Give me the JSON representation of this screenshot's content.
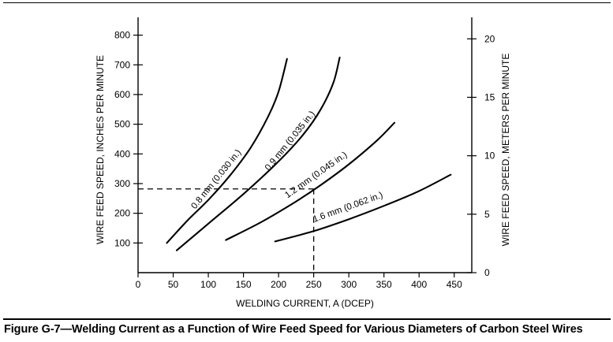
{
  "caption": "Figure G-7—Welding Current as a Function of Wire Feed Speed for Various Diameters of Carbon Steel Wires",
  "chart_data": {
    "type": "line",
    "xlabel": "WELDING CURRENT, A (DCEP)",
    "ylabel": "WIRE FEED SPEED, INCHES PER MINUTE",
    "y2label": "WIRE FEED SPEED, METERS PER MINUTE",
    "xlim": [
      0,
      475
    ],
    "ylim": [
      0,
      860
    ],
    "y2lim": [
      0,
      21.84
    ],
    "xticks": [
      0,
      50,
      100,
      150,
      200,
      250,
      300,
      350,
      400,
      450
    ],
    "yticks": [
      100,
      200,
      300,
      400,
      500,
      600,
      700,
      800
    ],
    "y2ticks": [
      0,
      5,
      10,
      15,
      20
    ],
    "grid": false,
    "series": [
      {
        "name": "0.8 mm (0.030 in.)",
        "x": [
          41,
          70,
          100,
          130,
          160,
          185,
          200,
          212
        ],
        "y": [
          100,
          175,
          245,
          325,
          420,
          525,
          610,
          720
        ]
      },
      {
        "name": "0.9 mm (0.035 in.)",
        "x": [
          55,
          100,
          150,
          200,
          235,
          260,
          278,
          287
        ],
        "y": [
          75,
          165,
          265,
          375,
          465,
          550,
          640,
          725
        ]
      },
      {
        "name": "1.2 mm (0.045 in.)",
        "x": [
          125,
          175,
          225,
          260,
          300,
          340,
          365
        ],
        "y": [
          110,
          170,
          240,
          295,
          365,
          445,
          505
        ]
      },
      {
        "name": "1.6 mm (0.062 in.)",
        "x": [
          195,
          250,
          300,
          350,
          400,
          445
        ],
        "y": [
          105,
          140,
          180,
          225,
          275,
          330
        ]
      }
    ],
    "annotations": [
      {
        "type": "dashed-reference",
        "x": 250,
        "y": 282
      }
    ]
  }
}
